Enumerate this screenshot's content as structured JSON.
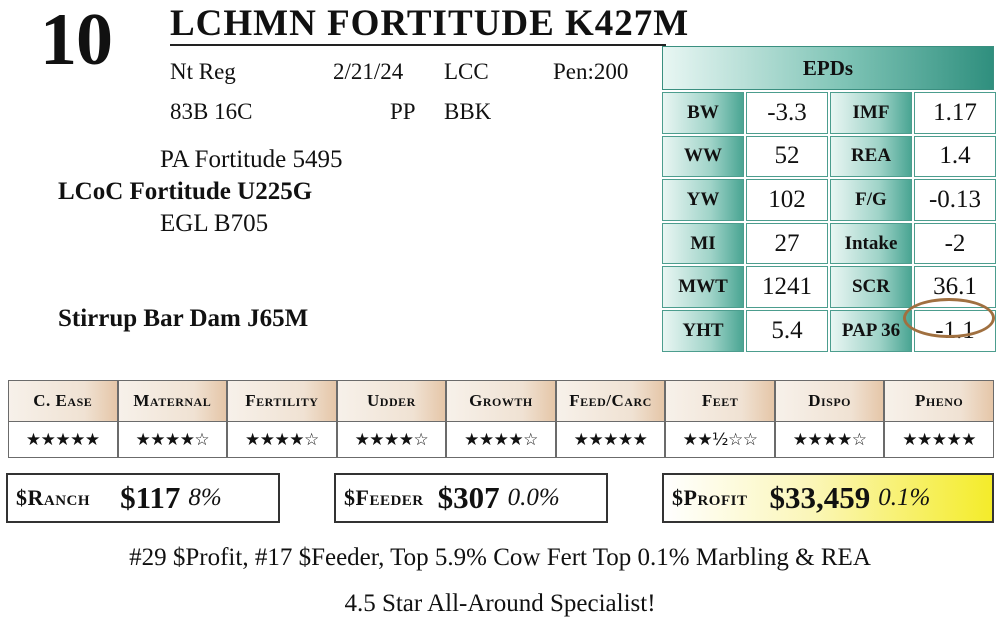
{
  "lot": "10",
  "animal_name": "LCHMN FORTITUDE K427M",
  "info": {
    "row1": [
      "Nt Reg",
      "2/21/24",
      "LCC",
      "Pen:200"
    ],
    "row2": [
      "83B 16C",
      "PP",
      "BBK"
    ]
  },
  "pedigree": {
    "sire_sire": "PA Fortitude 5495",
    "sire": "LCoC Fortitude U225G",
    "sire_dam": "EGL B705",
    "dam": "Stirrup Bar Dam J65M"
  },
  "epds": {
    "header": "EPDs",
    "rows": [
      {
        "l1": "BW",
        "v1": "-3.3",
        "l2": "IMF",
        "v2": "1.17"
      },
      {
        "l1": "WW",
        "v1": "52",
        "l2": "REA",
        "v2": "1.4"
      },
      {
        "l1": "YW",
        "v1": "102",
        "l2": "F/G",
        "v2": "-0.13"
      },
      {
        "l1": "MI",
        "v1": "27",
        "l2": "Intake",
        "v2": "-2"
      },
      {
        "l1": "MWT",
        "v1": "1241",
        "l2": "SCR",
        "v2": "36.1"
      },
      {
        "l1": "YHT",
        "v1": "5.4",
        "l2": "PAP 36",
        "v2": "-1.1"
      }
    ]
  },
  "ratings": {
    "headers": [
      "C. Ease",
      "Maternal",
      "Fertility",
      "Udder",
      "Growth",
      "Feed/Carc",
      "Feet",
      "Dispo",
      "Pheno"
    ],
    "stars": [
      "★★★★★",
      "★★★★☆",
      "★★★★☆",
      "★★★★☆",
      "★★★★☆",
      "★★★★★",
      "★★½☆☆",
      "★★★★☆",
      "★★★★★"
    ]
  },
  "indexes": {
    "ranch": {
      "label": "$Ranch",
      "value": "$117",
      "pct": "8%"
    },
    "feeder": {
      "label": "$Feeder",
      "value": "$307",
      "pct": "0.0%"
    },
    "profit": {
      "label": "$Profit",
      "value": "$33,459",
      "pct": "0.1%"
    }
  },
  "summary_line1": "#29 $Profit, #17 $Feeder, Top 5.9% Cow Fert Top 0.1% Marbling & REA",
  "summary_line2": "4.5 Star All-Around Specialist!",
  "colors": {
    "epd_accent": "#2f8f7e",
    "rating_header": "#e5c6a8",
    "profit_highlight": "#f4ec2a",
    "circle": "#a07040"
  }
}
